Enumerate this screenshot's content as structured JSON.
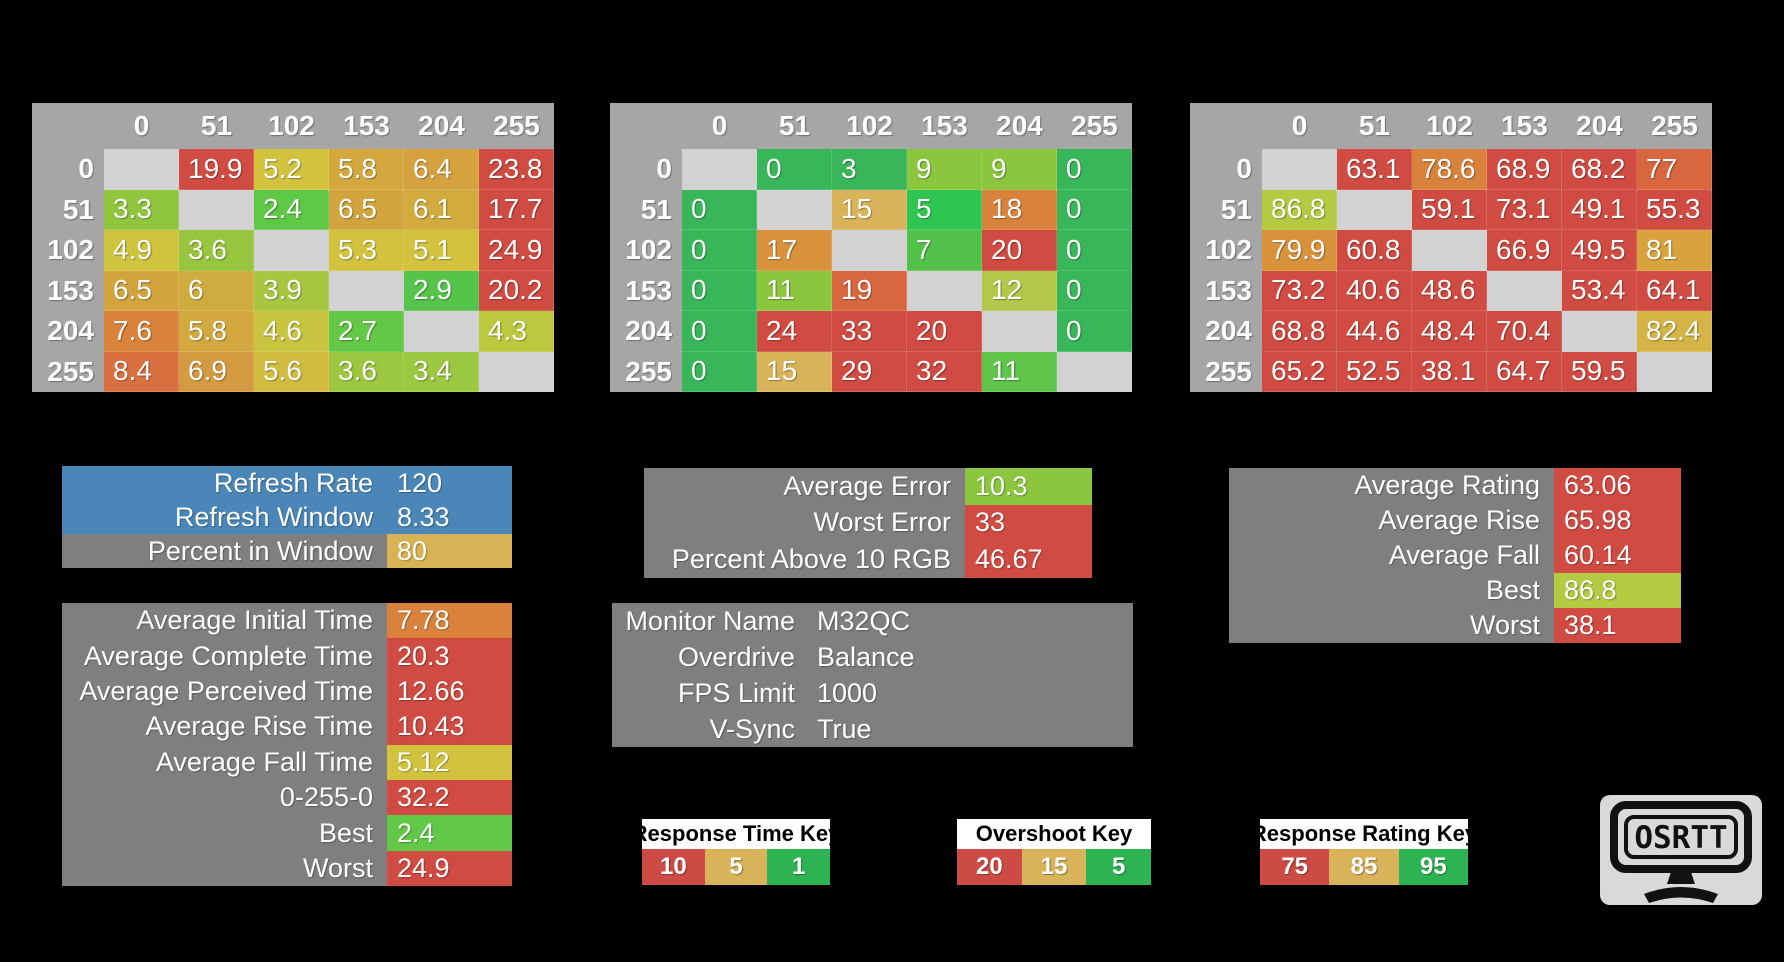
{
  "colors": {
    "background": "#000000",
    "table_header": "#a6a6a6",
    "diagonal": "#d2d2d2",
    "panel_gray": "#7f7f7f",
    "panel_blue": "#4a86b8"
  },
  "axis": [
    "0",
    "51",
    "102",
    "153",
    "204",
    "255"
  ],
  "heatmaps": [
    {
      "name": "response-time-table",
      "rows": [
        [
          {
            "v": "",
            "c": ""
          },
          {
            "v": "19.9",
            "c": "#d04b42"
          },
          {
            "v": "5.2",
            "c": "#d2c23e"
          },
          {
            "v": "5.8",
            "c": "#d3a83f"
          },
          {
            "v": "6.4",
            "c": "#d5a23f"
          },
          {
            "v": "23.8",
            "c": "#d04b42"
          }
        ],
        [
          {
            "v": "3.3",
            "c": "#8fc63e"
          },
          {
            "v": "",
            "c": ""
          },
          {
            "v": "2.4",
            "c": "#5ec847"
          },
          {
            "v": "6.5",
            "c": "#d2a43e"
          },
          {
            "v": "6.1",
            "c": "#d2ab3e"
          },
          {
            "v": "17.7",
            "c": "#d04b42"
          }
        ],
        [
          {
            "v": "4.9",
            "c": "#cfc43e"
          },
          {
            "v": "3.6",
            "c": "#97c63e"
          },
          {
            "v": "",
            "c": ""
          },
          {
            "v": "5.3",
            "c": "#d2c23e"
          },
          {
            "v": "5.1",
            "c": "#d2c23e"
          },
          {
            "v": "24.9",
            "c": "#d04b42"
          }
        ],
        [
          {
            "v": "6.5",
            "c": "#d2a43e"
          },
          {
            "v": "6",
            "c": "#d0ab40"
          },
          {
            "v": "3.9",
            "c": "#a8c741"
          },
          {
            "v": "",
            "c": ""
          },
          {
            "v": "2.9",
            "c": "#55c44a"
          },
          {
            "v": "20.2",
            "c": "#d04b42"
          }
        ],
        [
          {
            "v": "7.6",
            "c": "#d8823c"
          },
          {
            "v": "5.8",
            "c": "#d3a83f"
          },
          {
            "v": "4.6",
            "c": "#c9c43f"
          },
          {
            "v": "2.7",
            "c": "#64c847"
          },
          {
            "v": "",
            "c": ""
          },
          {
            "v": "4.3",
            "c": "#bcc83e"
          }
        ],
        [
          {
            "v": "8.4",
            "c": "#d8703f"
          },
          {
            "v": "6.9",
            "c": "#d49a42"
          },
          {
            "v": "5.6",
            "c": "#d2bc3f"
          },
          {
            "v": "3.6",
            "c": "#9cc740"
          },
          {
            "v": "3.4",
            "c": "#9cc740"
          },
          {
            "v": "",
            "c": ""
          }
        ]
      ]
    },
    {
      "name": "overshoot-table",
      "rows": [
        [
          {
            "v": "",
            "c": ""
          },
          {
            "v": "0",
            "c": "#3ab65a"
          },
          {
            "v": "3",
            "c": "#3ab65a"
          },
          {
            "v": "9",
            "c": "#8cc63e"
          },
          {
            "v": "9",
            "c": "#8cc63e"
          },
          {
            "v": "0",
            "c": "#3ab65a"
          }
        ],
        [
          {
            "v": "0",
            "c": "#3ab65a"
          },
          {
            "v": "",
            "c": ""
          },
          {
            "v": "15",
            "c": "#d8b359"
          },
          {
            "v": "5",
            "c": "#2fc551"
          },
          {
            "v": "18",
            "c": "#d8823c"
          },
          {
            "v": "0",
            "c": "#3ab65a"
          }
        ],
        [
          {
            "v": "0",
            "c": "#3ab65a"
          },
          {
            "v": "17",
            "c": "#d8923c"
          },
          {
            "v": "",
            "c": ""
          },
          {
            "v": "7",
            "c": "#52c24a"
          },
          {
            "v": "20",
            "c": "#d04b42"
          },
          {
            "v": "0",
            "c": "#3ab65a"
          }
        ],
        [
          {
            "v": "0",
            "c": "#3ab65a"
          },
          {
            "v": "11",
            "c": "#8cc63e"
          },
          {
            "v": "19",
            "c": "#d8663f"
          },
          {
            "v": "",
            "c": ""
          },
          {
            "v": "12",
            "c": "#b3c84b"
          },
          {
            "v": "0",
            "c": "#3ab65a"
          }
        ],
        [
          {
            "v": "0",
            "c": "#3ab65a"
          },
          {
            "v": "24",
            "c": "#d04b42"
          },
          {
            "v": "33",
            "c": "#d04b42"
          },
          {
            "v": "20",
            "c": "#d04b42"
          },
          {
            "v": "",
            "c": ""
          },
          {
            "v": "0",
            "c": "#3ab65a"
          }
        ],
        [
          {
            "v": "0",
            "c": "#3ab65a"
          },
          {
            "v": "15",
            "c": "#d8b359"
          },
          {
            "v": "29",
            "c": "#d04b42"
          },
          {
            "v": "32",
            "c": "#d04b42"
          },
          {
            "v": "11",
            "c": "#5fc44a"
          },
          {
            "v": "",
            "c": ""
          }
        ]
      ]
    },
    {
      "name": "response-rating-table",
      "rows": [
        [
          {
            "v": "",
            "c": ""
          },
          {
            "v": "63.1",
            "c": "#d04b42"
          },
          {
            "v": "78.6",
            "c": "#d8823c"
          },
          {
            "v": "68.9",
            "c": "#d04b42"
          },
          {
            "v": "68.2",
            "c": "#d04b42"
          },
          {
            "v": "77",
            "c": "#d8673f"
          }
        ],
        [
          {
            "v": "86.8",
            "c": "#b5c943"
          },
          {
            "v": "",
            "c": ""
          },
          {
            "v": "59.1",
            "c": "#d04b42"
          },
          {
            "v": "73.1",
            "c": "#d04b42"
          },
          {
            "v": "49.1",
            "c": "#d04b42"
          },
          {
            "v": "55.3",
            "c": "#d04b42"
          }
        ],
        [
          {
            "v": "79.9",
            "c": "#d8923c"
          },
          {
            "v": "60.8",
            "c": "#d04b42"
          },
          {
            "v": "",
            "c": ""
          },
          {
            "v": "66.9",
            "c": "#d04b42"
          },
          {
            "v": "49.5",
            "c": "#d04b42"
          },
          {
            "v": "81",
            "c": "#d8a33c"
          }
        ],
        [
          {
            "v": "73.2",
            "c": "#d04b42"
          },
          {
            "v": "40.6",
            "c": "#d04b42"
          },
          {
            "v": "48.6",
            "c": "#d04b42"
          },
          {
            "v": "",
            "c": ""
          },
          {
            "v": "53.4",
            "c": "#d04b42"
          },
          {
            "v": "64.1",
            "c": "#d04b42"
          }
        ],
        [
          {
            "v": "68.8",
            "c": "#d04b42"
          },
          {
            "v": "44.6",
            "c": "#d04b42"
          },
          {
            "v": "48.4",
            "c": "#d04b42"
          },
          {
            "v": "70.4",
            "c": "#d04b42"
          },
          {
            "v": "",
            "c": ""
          },
          {
            "v": "82.4",
            "c": "#d4b444"
          }
        ],
        [
          {
            "v": "65.2",
            "c": "#d04b42"
          },
          {
            "v": "52.5",
            "c": "#d04b42"
          },
          {
            "v": "38.1",
            "c": "#d04b42"
          },
          {
            "v": "64.7",
            "c": "#d04b42"
          },
          {
            "v": "59.5",
            "c": "#d04b42"
          },
          {
            "v": "",
            "c": ""
          }
        ]
      ]
    }
  ],
  "panels": {
    "refresh": {
      "rows": [
        {
          "label": "Refresh Rate",
          "value": "120",
          "label_bg": "#4a86b8",
          "value_bg": "#4a86b8"
        },
        {
          "label": "Refresh Window",
          "value": "8.33",
          "label_bg": "#4a86b8",
          "value_bg": "#4a86b8"
        },
        {
          "label": "Percent in Window",
          "value": "80",
          "label_bg": "#7f7f7f",
          "value_bg": "#d8b356"
        }
      ]
    },
    "error": {
      "rows": [
        {
          "label": "Average Error",
          "value": "10.3",
          "label_bg": "#7f7f7f",
          "value_bg": "#8cc63e"
        },
        {
          "label": "Worst Error",
          "value": "33",
          "label_bg": "#7f7f7f",
          "value_bg": "#d04b42"
        },
        {
          "label": "Percent Above 10 RGB",
          "value": "46.67",
          "label_bg": "#7f7f7f",
          "value_bg": "#d04b42"
        }
      ]
    },
    "rating": {
      "rows": [
        {
          "label": "Average Rating",
          "value": "63.06",
          "label_bg": "#7f7f7f",
          "value_bg": "#d04b42"
        },
        {
          "label": "Average Rise",
          "value": "65.98",
          "label_bg": "#7f7f7f",
          "value_bg": "#d04b42"
        },
        {
          "label": "Average Fall",
          "value": "60.14",
          "label_bg": "#7f7f7f",
          "value_bg": "#d04b42"
        },
        {
          "label": "Best",
          "value": "86.8",
          "label_bg": "#7f7f7f",
          "value_bg": "#b5c943"
        },
        {
          "label": "Worst",
          "value": "38.1",
          "label_bg": "#7f7f7f",
          "value_bg": "#d04b42"
        }
      ]
    },
    "times": {
      "rows": [
        {
          "label": "Average Initial Time",
          "value": "7.78",
          "label_bg": "#7f7f7f",
          "value_bg": "#d8823c"
        },
        {
          "label": "Average Complete Time",
          "value": "20.3",
          "label_bg": "#7f7f7f",
          "value_bg": "#d04b42"
        },
        {
          "label": "Average Perceived Time",
          "value": "12.66",
          "label_bg": "#7f7f7f",
          "value_bg": "#d04b42"
        },
        {
          "label": "Average Rise Time",
          "value": "10.43",
          "label_bg": "#7f7f7f",
          "value_bg": "#d04b42"
        },
        {
          "label": "Average Fall Time",
          "value": "5.12",
          "label_bg": "#7f7f7f",
          "value_bg": "#d2c23e"
        },
        {
          "label": "0-255-0",
          "value": "32.2",
          "label_bg": "#7f7f7f",
          "value_bg": "#d04b42"
        },
        {
          "label": "Best",
          "value": "2.4",
          "label_bg": "#7f7f7f",
          "value_bg": "#62c847"
        },
        {
          "label": "Worst",
          "value": "24.9",
          "label_bg": "#7f7f7f",
          "value_bg": "#d04b42"
        }
      ]
    },
    "monitor": {
      "rows": [
        {
          "label": "Monitor Name",
          "value": "M32QC",
          "label_bg": "#7f7f7f",
          "value_bg": "#7f7f7f"
        },
        {
          "label": "Overdrive",
          "value": "Balance",
          "label_bg": "#7f7f7f",
          "value_bg": "#7f7f7f"
        },
        {
          "label": "FPS Limit",
          "value": "1000",
          "label_bg": "#7f7f7f",
          "value_bg": "#7f7f7f"
        },
        {
          "label": "V-Sync",
          "value": "True",
          "label_bg": "#7f7f7f",
          "value_bg": "#7f7f7f"
        }
      ]
    }
  },
  "keys": [
    {
      "title": "Response Time Key",
      "cells": [
        {
          "v": "10",
          "c": "#cc4b44"
        },
        {
          "v": "5",
          "c": "#d8b359"
        },
        {
          "v": "1",
          "c": "#2eb353"
        }
      ]
    },
    {
      "title": "Overshoot Key",
      "cells": [
        {
          "v": "20",
          "c": "#cc4b44"
        },
        {
          "v": "15",
          "c": "#d8b359"
        },
        {
          "v": "5",
          "c": "#2eb353"
        }
      ]
    },
    {
      "title": "Response Rating Key",
      "cells": [
        {
          "v": "75",
          "c": "#cc4b44"
        },
        {
          "v": "85",
          "c": "#d8b359"
        },
        {
          "v": "95",
          "c": "#2eb353"
        }
      ]
    }
  ],
  "logo": {
    "text": "OSRTT"
  }
}
